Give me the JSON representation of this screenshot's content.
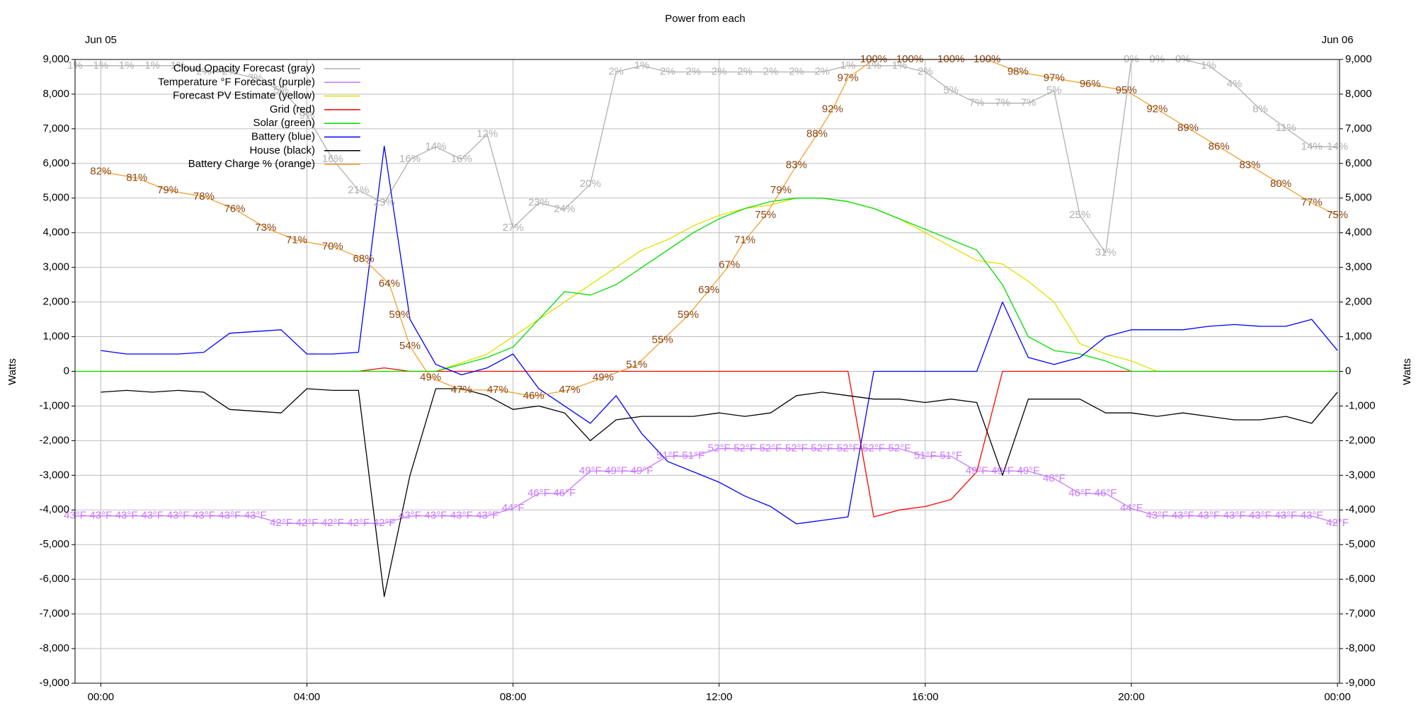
{
  "chart_data": {
    "type": "line",
    "title": "Power from each",
    "ylabel": "Watts",
    "y2label": "Watts",
    "date_labels": [
      {
        "value": 0,
        "label": "Jun 05"
      },
      {
        "value": 24,
        "label": "Jun 06"
      }
    ],
    "xlim": [
      -0.5,
      24.04
    ],
    "xticks": [
      {
        "value": 0,
        "label": "00:00"
      },
      {
        "value": 4,
        "label": "04:00"
      },
      {
        "value": 8,
        "label": "08:00"
      },
      {
        "value": 12,
        "label": "12:00"
      },
      {
        "value": 16,
        "label": "16:00"
      },
      {
        "value": 20,
        "label": "20:00"
      },
      {
        "value": 24,
        "label": "00:00"
      }
    ],
    "ylim": [
      -9000,
      9000
    ],
    "yticks": [
      {
        "value": -9000,
        "label": "-9,000"
      },
      {
        "value": -8000,
        "label": "-8,000"
      },
      {
        "value": -7000,
        "label": "-7,000"
      },
      {
        "value": -6000,
        "label": "-6,000"
      },
      {
        "value": -5000,
        "label": "-5,000"
      },
      {
        "value": -4000,
        "label": "-4,000"
      },
      {
        "value": -3000,
        "label": "-3,000"
      },
      {
        "value": -2000,
        "label": "-2,000"
      },
      {
        "value": -1000,
        "label": "-1,000"
      },
      0,
      {
        "value": 1000,
        "label": "1,000"
      },
      {
        "value": 2000,
        "label": "2,000"
      },
      {
        "value": 3000,
        "label": "3,000"
      },
      {
        "value": 4000,
        "label": "4,000"
      },
      {
        "value": 5000,
        "label": "5,000"
      },
      {
        "value": 6000,
        "label": "6,000"
      },
      {
        "value": 7000,
        "label": "7,000"
      },
      {
        "value": 8000,
        "label": "8,000"
      },
      {
        "value": 9000,
        "label": "9,000"
      }
    ],
    "y2lim": [
      -9000,
      9000
    ],
    "y2ticks": [
      {
        "value": -9000,
        "label": "-9,000"
      },
      {
        "value": -8000,
        "label": "-8,000"
      },
      {
        "value": -7000,
        "label": "-7,000"
      },
      {
        "value": -6000,
        "label": "-6,000"
      },
      {
        "value": -5000,
        "label": "-5,000"
      },
      {
        "value": -4000,
        "label": "-4,000"
      },
      {
        "value": -3000,
        "label": "-3,000"
      },
      {
        "value": -2000,
        "label": "-2,000"
      },
      {
        "value": -1000,
        "label": "-1,000"
      },
      0,
      {
        "value": 1000,
        "label": "1,000"
      },
      {
        "value": 2000,
        "label": "2,000"
      },
      {
        "value": 3000,
        "label": "3,000"
      },
      {
        "value": 4000,
        "label": "4,000"
      },
      {
        "value": 5000,
        "label": "5,000"
      },
      {
        "value": 6000,
        "label": "6,000"
      },
      {
        "value": 7000,
        "label": "7,000"
      },
      {
        "value": 8000,
        "label": "8,000"
      },
      {
        "value": 9000,
        "label": "9,000"
      }
    ],
    "grid": true,
    "legend": "upper left",
    "x": [
      -0.5,
      0,
      0.5,
      1,
      1.5,
      2,
      2.5,
      3,
      3.5,
      4,
      4.5,
      5,
      5.5,
      6,
      6.5,
      7,
      7.5,
      8,
      8.5,
      9,
      9.5,
      10,
      10.5,
      11,
      11.5,
      12,
      12.5,
      13,
      13.5,
      14,
      14.5,
      15,
      15.5,
      16,
      16.5,
      17,
      17.5,
      18,
      18.5,
      19,
      19.5,
      20,
      20.5,
      21,
      21.5,
      22,
      22.5,
      23,
      23.5,
      24
    ],
    "series": [
      {
        "name": "Cloud Opacity Forecast (gray)",
        "color": "#b0b0b0",
        "ylim": [
          100,
          0
        ],
        "values": [
          1,
          1,
          1,
          1,
          1,
          2,
          2,
          3,
          5,
          9,
          16,
          21,
          23,
          16,
          14,
          16,
          12,
          27,
          23,
          24,
          20,
          2,
          1,
          2,
          2,
          2,
          2,
          2,
          2,
          2,
          1,
          1,
          1,
          2,
          5,
          7,
          7,
          7,
          5,
          25,
          31,
          0,
          0,
          0,
          1,
          4,
          8,
          11,
          14,
          14
        ],
        "value_labels": [
          "1%",
          "1%",
          "1%",
          "1%",
          "1%",
          "2%",
          "2%",
          "3%",
          "5%",
          "9%",
          "16%",
          "21%",
          "23%",
          "16%",
          "14%",
          "16%",
          "12%",
          "27%",
          "23%",
          "24%",
          "20%",
          "2%",
          "1%",
          "2%",
          "2%",
          "2%",
          "2%",
          "2%",
          "2%",
          "2%",
          "1%",
          "1%",
          "1%",
          "2%",
          "5%",
          "7%",
          "7%",
          "7%",
          "5%",
          "25%",
          "31%",
          "0%",
          "0%",
          "0%",
          "1%",
          "4%",
          "8%",
          "11%",
          "14%",
          "14%"
        ]
      },
      {
        "name": "Temperature °F Forecast (purple)",
        "color": "#c878ff",
        "ylim": [
          20.6,
          104.1
        ],
        "values": [
          43,
          43,
          43,
          43,
          43,
          43,
          43,
          43,
          42,
          42,
          42,
          42,
          42,
          43,
          43,
          43,
          43,
          44,
          46,
          46,
          49,
          49,
          49,
          51,
          51,
          52,
          52,
          52,
          52,
          52,
          52,
          52,
          52,
          51,
          51,
          49,
          49,
          49,
          48,
          46,
          46,
          44,
          43,
          43,
          43,
          43,
          43,
          43,
          43,
          42
        ],
        "value_labels": [
          "43°F",
          "43°F",
          "43°F",
          "43°F",
          "43°F",
          "43°F",
          "43°F",
          "43°F",
          "42°F",
          "42°F",
          "42°F",
          "42°F",
          "42°F",
          "43°F",
          "43°F",
          "43°F",
          "43°F",
          "44°F",
          "46°F",
          "46°F",
          "49°F",
          "49°F",
          "49°F",
          "51°F",
          "51°F",
          "52°F",
          "52°F",
          "52°F",
          "52°F",
          "52°F",
          "52°F",
          "52°F",
          "52°F",
          "51°F",
          "51°F",
          "49°F",
          "49°F",
          "49°F",
          "48°F",
          "46°F",
          "46°F",
          "44°F",
          "43°F",
          "43°F",
          "43°F",
          "43°F",
          "43°F",
          "43°F",
          "43°F",
          "42°F"
        ]
      },
      {
        "name": "Forecast PV Estimate (yellow)",
        "color": "#e0e000",
        "values": [
          0,
          0,
          0,
          0,
          0,
          0,
          0,
          0,
          0,
          0,
          0,
          0,
          0,
          0,
          0,
          250,
          500,
          1000,
          1500,
          2000,
          2500,
          3000,
          3500,
          3800,
          4200,
          4500,
          4700,
          4800,
          5000,
          5000,
          4900,
          4700,
          4400,
          4000,
          3600,
          3200,
          3100,
          2600,
          2000,
          800,
          500,
          300,
          0,
          0,
          0,
          0,
          0,
          0,
          0,
          0
        ]
      },
      {
        "name": "Grid (red)",
        "color": "#ff0000",
        "values": [
          null,
          0,
          0,
          0,
          0,
          0,
          0,
          0,
          0,
          0,
          0,
          0,
          100,
          0,
          0,
          0,
          0,
          0,
          0,
          0,
          0,
          0,
          0,
          0,
          0,
          0,
          0,
          0,
          0,
          0,
          0,
          -4200,
          -4000,
          -3900,
          -3700,
          -2900,
          0,
          0,
          0,
          0,
          0,
          0,
          0,
          0,
          0,
          0,
          0,
          0,
          0,
          0
        ]
      },
      {
        "name": "Solar (green)",
        "color": "#00dd00",
        "values": [
          0,
          0,
          0,
          0,
          0,
          0,
          0,
          0,
          0,
          0,
          0,
          0,
          0,
          0,
          0,
          200,
          400,
          700,
          1500,
          2300,
          2200,
          2500,
          3000,
          3500,
          4000,
          4400,
          4700,
          4900,
          5000,
          5000,
          4900,
          4700,
          4400,
          4100,
          3800,
          3500,
          2500,
          1000,
          600,
          500,
          300,
          0,
          0,
          0,
          0,
          0,
          0,
          0,
          0,
          0
        ]
      },
      {
        "name": "Battery (blue)",
        "color": "#0000ff",
        "values": [
          null,
          600,
          500,
          500,
          500,
          550,
          1100,
          1150,
          1200,
          500,
          500,
          550,
          6500,
          1500,
          200,
          -100,
          100,
          500,
          -500,
          -1000,
          -1500,
          -700,
          -1800,
          -2600,
          -2900,
          -3200,
          -3600,
          -3900,
          -4400,
          -4300,
          -4200,
          0,
          0,
          0,
          0,
          0,
          2000,
          400,
          200,
          400,
          1000,
          1200,
          1200,
          1200,
          1300,
          1350,
          1300,
          1300,
          1500,
          600
        ]
      },
      {
        "name": "House (black)",
        "color": "#000000",
        "values": [
          null,
          -600,
          -550,
          -600,
          -550,
          -600,
          -1100,
          -1150,
          -1200,
          -500,
          -550,
          -550,
          -6500,
          -3000,
          -500,
          -500,
          -700,
          -1100,
          -1000,
          -1200,
          -2000,
          -1400,
          -1300,
          -1300,
          -1300,
          -1200,
          -1300,
          -1200,
          -700,
          -600,
          -700,
          -800,
          -800,
          -900,
          -800,
          -900,
          -3000,
          -800,
          -800,
          -800,
          -1200,
          -1200,
          -1300,
          -1200,
          -1300,
          -1400,
          -1400,
          -1300,
          -1500,
          -600
        ]
      },
      {
        "name": "Battery Charge % (orange)",
        "color": "#f0a030",
        "label_color": "#8b4513",
        "ylim": [
          0,
          100
        ],
        "x": [
          0,
          0.7,
          1.3,
          2,
          2.6,
          3.2,
          3.8,
          4.5,
          5.1,
          5.6,
          5.8,
          6,
          6.4,
          7,
          7.7,
          8.4,
          9.1,
          9.75,
          10.4,
          10.9,
          11.4,
          11.8,
          12.2,
          12.5,
          12.9,
          13.2,
          13.5,
          13.9,
          14.2,
          14.5,
          15,
          15.7,
          16.5,
          17.2,
          17.8,
          18.5,
          19.2,
          19.9,
          20.5,
          21.1,
          21.7,
          22.3,
          22.9,
          23.5,
          24
        ],
        "values": [
          82,
          81,
          79,
          78,
          76,
          73,
          71,
          70,
          68,
          64,
          59,
          54,
          49,
          47,
          47,
          46,
          47,
          49,
          51,
          55,
          59,
          63,
          67,
          71,
          75,
          79,
          83,
          88,
          92,
          97,
          100,
          100,
          100,
          100,
          98,
          97,
          96,
          95,
          92,
          89,
          86,
          83,
          80,
          77,
          75
        ],
        "value_labels": [
          "82%",
          "81%",
          "79%",
          "78%",
          "76%",
          "73%",
          "71%",
          "70%",
          "68%",
          "64%",
          "59%",
          "54%",
          "49%",
          "47%",
          "47%",
          "46%",
          "47%",
          "49%",
          "51%",
          "55%",
          "59%",
          "63%",
          "67%",
          "71%",
          "75%",
          "79%",
          "83%",
          "88%",
          "92%",
          "97%",
          "100%",
          "100%",
          "100%",
          "100%",
          "98%",
          "97%",
          "96%",
          "95%",
          "92%",
          "89%",
          "86%",
          "83%",
          "80%",
          "77%",
          "75%"
        ]
      }
    ]
  }
}
